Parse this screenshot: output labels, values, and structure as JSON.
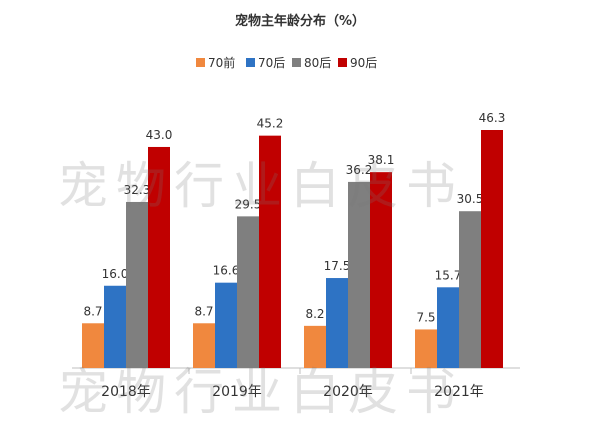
{
  "title": "宠物主年龄分布（%）",
  "legend": [
    {
      "name": "70前",
      "color": "#f0883e"
    },
    {
      "name": "70后",
      "color": "#2e73c4"
    },
    {
      "name": "80后",
      "color": "#7f7f7f"
    },
    {
      "name": "90后",
      "color": "#c00000"
    }
  ],
  "watermark": "宠物行业白皮书",
  "chart_data": {
    "type": "bar",
    "title": "宠物主年龄分布（%）",
    "categories": [
      "2018年",
      "2019年",
      "2020年",
      "2021年"
    ],
    "series": [
      {
        "name": "70前",
        "color": "#f0883e",
        "values": [
          8.7,
          8.7,
          8.2,
          7.5
        ]
      },
      {
        "name": "70后",
        "color": "#2e73c4",
        "values": [
          16.0,
          16.6,
          17.5,
          15.7
        ]
      },
      {
        "name": "80后",
        "color": "#7f7f7f",
        "values": [
          32.3,
          29.5,
          36.2,
          30.5
        ]
      },
      {
        "name": "90后",
        "color": "#c00000",
        "values": [
          43.0,
          45.2,
          38.1,
          46.3
        ]
      }
    ],
    "ylim": [
      0,
      50
    ],
    "grid": false,
    "legend_position": "top"
  }
}
